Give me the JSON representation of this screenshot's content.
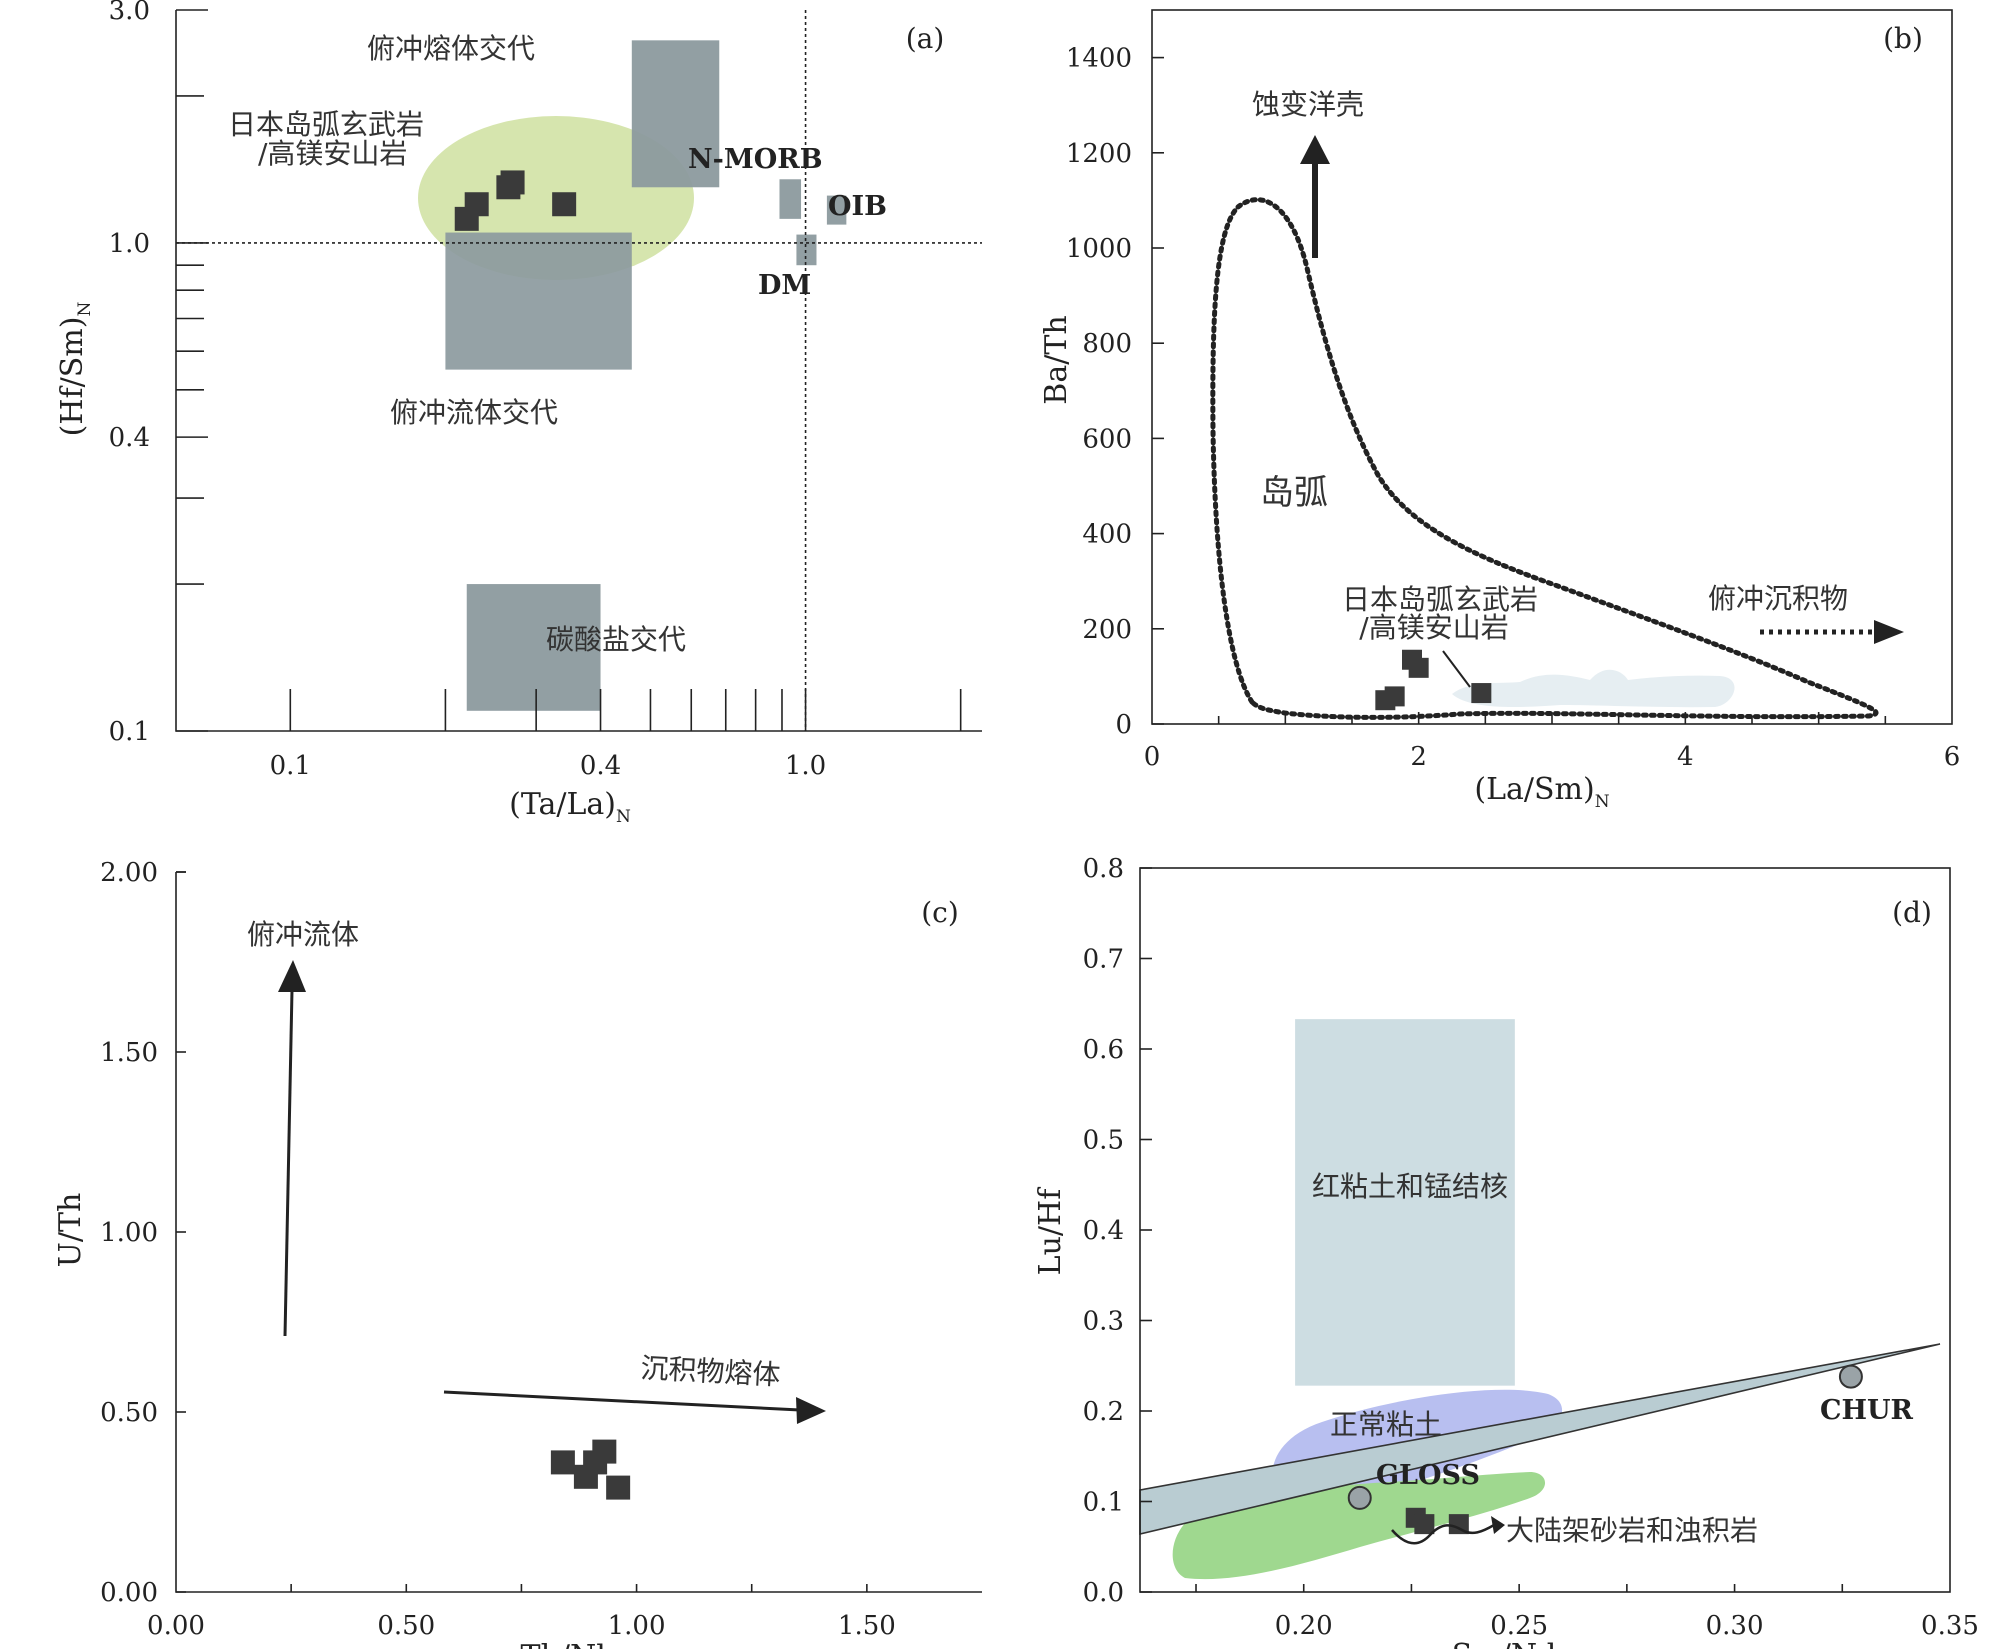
{
  "chart_data": [
    {
      "panel": "(a)",
      "type": "scatter",
      "xlabel": "(Ta/La)",
      "xlabel_sub": "N",
      "ylabel": "(Hf/Sm)",
      "ylabel_sub": "N",
      "xscale": "log",
      "yscale": "log",
      "xlim": [
        0.06,
        2.2
      ],
      "ylim": [
        0.1,
        3.0
      ],
      "xticks": [
        "0.1",
        "0.4",
        "1.0"
      ],
      "yticks": [
        "0.1",
        "0.4",
        "1.0",
        "3.0"
      ],
      "reference_lines": {
        "x": 1.0,
        "y": 1.0
      },
      "regions": [
        {
          "label": "俯冲熔体交代",
          "x": [
            0.46,
            0.68
          ],
          "y": [
            1.3,
            2.6
          ],
          "fill": "#8c9a9e"
        },
        {
          "label": "俯冲流体交代",
          "x": [
            0.2,
            0.46
          ],
          "y": [
            0.55,
            1.05
          ],
          "fill": "#8c9a9e"
        },
        {
          "label": "碳酸盐交代",
          "x": [
            0.22,
            0.4
          ],
          "y": [
            0.11,
            0.2
          ],
          "fill": "#8c9a9e"
        },
        {
          "label": "N-MORB",
          "x": [
            0.89,
            0.98
          ],
          "y": [
            1.12,
            1.35
          ],
          "fill": "#8c9a9e"
        },
        {
          "label": "OIB",
          "x": [
            1.1,
            1.2
          ],
          "y": [
            1.09,
            1.25
          ],
          "fill": "#8c9a9e"
        },
        {
          "label": "DM",
          "x": [
            0.96,
            1.05
          ],
          "y": [
            0.9,
            1.04
          ],
          "fill": "#8c9a9e"
        },
        {
          "label": "日本岛弧玄武岩/高镁安山岩",
          "label_lines": [
            "日本岛弧玄武岩",
            "/高镁安山岩"
          ],
          "shape": "ellipse",
          "fill": "#cfe0a0"
        }
      ],
      "points": [
        {
          "x": 0.22,
          "y": 1.12
        },
        {
          "x": 0.23,
          "y": 1.2
        },
        {
          "x": 0.265,
          "y": 1.3
        },
        {
          "x": 0.27,
          "y": 1.33
        },
        {
          "x": 0.34,
          "y": 1.2
        }
      ],
      "annotations": [
        "N-MORB",
        "OIB",
        "DM"
      ]
    },
    {
      "panel": "(b)",
      "type": "scatter",
      "xlabel": "(La/Sm)",
      "xlabel_sub": "N",
      "ylabel": "Ba/Th",
      "xlim": [
        0,
        6
      ],
      "ylim": [
        0,
        1500
      ],
      "xticks": [
        0,
        2,
        4,
        6
      ],
      "yticks": [
        0,
        200,
        400,
        600,
        800,
        1000,
        1200,
        1400
      ],
      "regions": [
        {
          "label": "岛弧",
          "shape": "dotted-outline"
        },
        {
          "label": "",
          "shape": "pale-field",
          "fill": "#e6eef2"
        }
      ],
      "labels": [
        "日本岛弧玄武岩",
        "/高镁安山岩"
      ],
      "arrows": [
        {
          "label": "蚀变洋壳",
          "direction": "up"
        },
        {
          "label": "俯冲沉积物",
          "direction": "right",
          "style": "dotted"
        }
      ],
      "points": [
        {
          "x": 1.75,
          "y": 50
        },
        {
          "x": 1.82,
          "y": 58
        },
        {
          "x": 1.95,
          "y": 135
        },
        {
          "x": 2.0,
          "y": 118
        },
        {
          "x": 2.47,
          "y": 65
        }
      ]
    },
    {
      "panel": "(c)",
      "type": "scatter",
      "xlabel": "Th/Nb",
      "ylabel": "U/Th",
      "xlim": [
        0,
        1.75
      ],
      "ylim": [
        0,
        2.0
      ],
      "xticks": [
        "0.00",
        "0.50",
        "1.00",
        "1.50"
      ],
      "yticks": [
        "0.00",
        "0.50",
        "1.00",
        "1.50",
        "2.00"
      ],
      "arrows": [
        {
          "label": "俯冲流体",
          "direction": "up"
        },
        {
          "label": "沉积物熔体",
          "direction": "right"
        }
      ],
      "points": [
        {
          "x": 0.84,
          "y": 0.36
        },
        {
          "x": 0.89,
          "y": 0.32
        },
        {
          "x": 0.91,
          "y": 0.36
        },
        {
          "x": 0.93,
          "y": 0.39
        },
        {
          "x": 0.96,
          "y": 0.29
        }
      ]
    },
    {
      "panel": "(d)",
      "type": "scatter",
      "xlabel": "Sm/Nd",
      "ylabel": "Lu/Hf",
      "xlim": [
        0.162,
        0.35
      ],
      "ylim": [
        0,
        0.8
      ],
      "xticks": [
        "0.20",
        "0.25",
        "0.30",
        "0.35"
      ],
      "yticks": [
        "0.0",
        "0.1",
        "0.2",
        "0.3",
        "0.4",
        "0.5",
        "0.6",
        "0.7",
        "0.8"
      ],
      "regions": [
        {
          "label": "红粘土和锰结核",
          "x": [
            0.198,
            0.249
          ],
          "y": [
            0.228,
            0.633
          ],
          "fill": "#cddde2"
        },
        {
          "label": "正常粘土",
          "shape": "blob",
          "fill": "#b8bff0"
        },
        {
          "label": "大陆架砂岩和浊积岩",
          "shape": "blob",
          "fill": "#9fd88f"
        }
      ],
      "reference_points": [
        {
          "label": "GLOSS",
          "x": 0.213,
          "y": 0.104
        },
        {
          "label": "CHUR",
          "x": 0.327,
          "y": 0.238
        }
      ],
      "points": [
        {
          "x": 0.226,
          "y": 0.082
        },
        {
          "x": 0.228,
          "y": 0.075
        },
        {
          "x": 0.236,
          "y": 0.075
        }
      ]
    }
  ]
}
